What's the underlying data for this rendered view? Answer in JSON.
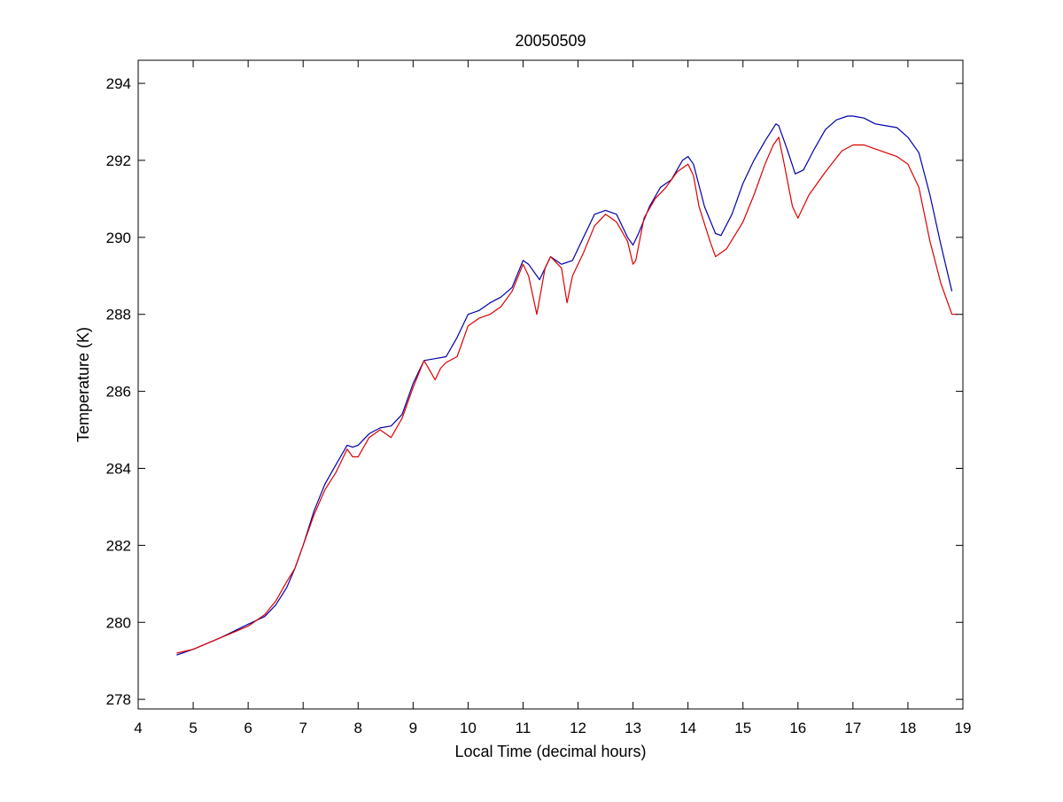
{
  "chart_data": {
    "type": "line",
    "title": "20050509",
    "xlabel": "Local Time (decimal hours)",
    "ylabel": "Temperature (K)",
    "xlim": [
      4,
      19
    ],
    "ylim": [
      277.75,
      294.6
    ],
    "xticks": [
      4,
      5,
      6,
      7,
      8,
      9,
      10,
      11,
      12,
      13,
      14,
      15,
      16,
      17,
      18,
      19
    ],
    "yticks": [
      278,
      280,
      282,
      284,
      286,
      288,
      290,
      292,
      294
    ],
    "grid": false,
    "legend": "none",
    "series": [
      {
        "color": "#0000aa",
        "x": [
          4.7,
          5.0,
          5.5,
          6.0,
          6.3,
          6.5,
          6.7,
          6.85,
          7.0,
          7.2,
          7.4,
          7.6,
          7.8,
          7.9,
          8.0,
          8.2,
          8.4,
          8.6,
          8.8,
          9.0,
          9.2,
          9.4,
          9.6,
          9.8,
          10.0,
          10.2,
          10.4,
          10.6,
          10.8,
          11.0,
          11.1,
          11.3,
          11.5,
          11.7,
          11.9,
          12.1,
          12.3,
          12.5,
          12.7,
          12.9,
          13.0,
          13.1,
          13.3,
          13.5,
          13.7,
          13.9,
          14.0,
          14.1,
          14.3,
          14.5,
          14.6,
          14.8,
          15.0,
          15.2,
          15.4,
          15.6,
          15.65,
          15.8,
          15.95,
          16.1,
          16.3,
          16.5,
          16.7,
          16.9,
          17.0,
          17.2,
          17.4,
          17.6,
          17.8,
          18.0,
          18.2,
          18.4,
          18.6,
          18.8
        ],
        "y": [
          279.15,
          279.3,
          279.6,
          279.95,
          280.15,
          280.45,
          280.9,
          281.4,
          282.0,
          282.9,
          283.6,
          284.1,
          284.6,
          284.55,
          284.6,
          284.9,
          285.05,
          285.1,
          285.4,
          286.2,
          286.8,
          286.85,
          286.9,
          287.4,
          288.0,
          288.1,
          288.3,
          288.45,
          288.7,
          289.4,
          289.3,
          288.9,
          289.5,
          289.3,
          289.4,
          290.0,
          290.6,
          290.7,
          290.6,
          290.0,
          289.8,
          290.1,
          290.8,
          291.3,
          291.5,
          292.0,
          292.1,
          291.9,
          290.8,
          290.1,
          290.05,
          290.6,
          291.4,
          292.0,
          292.5,
          292.95,
          292.9,
          292.3,
          291.65,
          291.75,
          292.3,
          292.8,
          293.05,
          293.15,
          293.15,
          293.1,
          292.95,
          292.9,
          292.85,
          292.6,
          292.2,
          291.1,
          289.8,
          288.6
        ]
      },
      {
        "color": "#dd0000",
        "x": [
          4.7,
          5.0,
          5.5,
          6.0,
          6.3,
          6.5,
          6.7,
          6.85,
          7.0,
          7.2,
          7.4,
          7.6,
          7.8,
          7.9,
          8.0,
          8.2,
          8.4,
          8.6,
          8.8,
          9.0,
          9.2,
          9.4,
          9.5,
          9.6,
          9.8,
          10.0,
          10.2,
          10.4,
          10.6,
          10.8,
          11.0,
          11.1,
          11.25,
          11.4,
          11.5,
          11.7,
          11.8,
          11.9,
          12.1,
          12.3,
          12.5,
          12.7,
          12.9,
          13.0,
          13.05,
          13.2,
          13.4,
          13.6,
          13.8,
          14.0,
          14.1,
          14.2,
          14.4,
          14.5,
          14.7,
          15.0,
          15.2,
          15.4,
          15.55,
          15.65,
          15.75,
          15.9,
          16.0,
          16.2,
          16.5,
          16.8,
          17.0,
          17.2,
          17.4,
          17.6,
          17.8,
          18.0,
          18.2,
          18.4,
          18.6,
          18.8,
          18.9
        ],
        "y": [
          279.2,
          279.3,
          279.6,
          279.9,
          280.2,
          280.55,
          281.05,
          281.4,
          282.0,
          282.8,
          283.45,
          283.9,
          284.5,
          284.3,
          284.3,
          284.8,
          285.0,
          284.8,
          285.3,
          286.1,
          286.8,
          286.3,
          286.6,
          286.75,
          286.9,
          287.7,
          287.9,
          288.0,
          288.2,
          288.6,
          289.3,
          289.0,
          288.0,
          289.2,
          289.5,
          289.2,
          288.3,
          289.0,
          289.6,
          290.3,
          290.6,
          290.4,
          289.9,
          289.3,
          289.4,
          290.5,
          291.0,
          291.3,
          291.7,
          291.9,
          291.6,
          290.8,
          289.9,
          289.5,
          289.7,
          290.4,
          291.1,
          291.9,
          292.4,
          292.6,
          291.9,
          290.8,
          290.5,
          291.1,
          291.7,
          292.25,
          292.4,
          292.4,
          292.3,
          292.2,
          292.1,
          291.9,
          291.3,
          289.9,
          288.8,
          288.0,
          288.0
        ]
      }
    ]
  }
}
